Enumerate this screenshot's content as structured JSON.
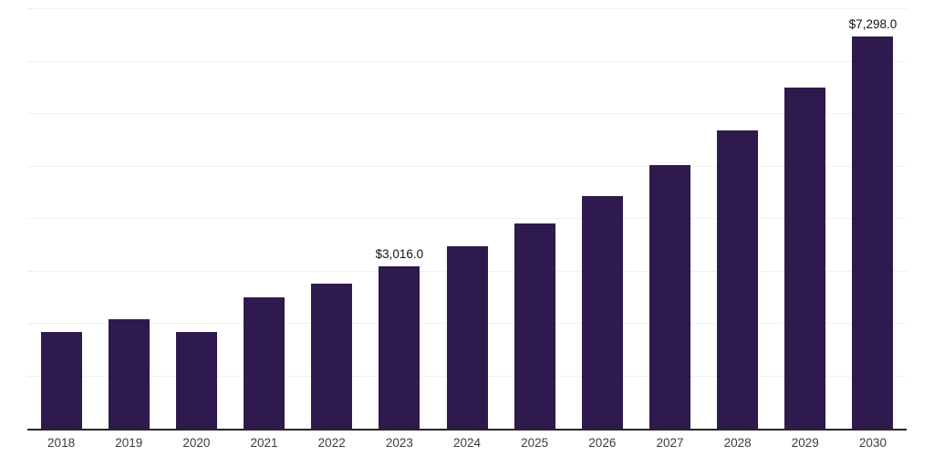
{
  "chart_data": {
    "type": "bar",
    "title": "",
    "xlabel": "",
    "ylabel": "",
    "categories": [
      "2018",
      "2019",
      "2020",
      "2021",
      "2022",
      "2023",
      "2024",
      "2025",
      "2026",
      "2027",
      "2028",
      "2029",
      "2030"
    ],
    "values": [
      1790,
      2030,
      1790,
      2450,
      2700,
      3016,
      3400,
      3820,
      4330,
      4900,
      5540,
      6340,
      7298
    ],
    "annotations": [
      {
        "category": "2023",
        "text": "$3,016.0"
      },
      {
        "category": "2030",
        "text": "$7,298.0"
      }
    ],
    "ylim": [
      0,
      7800
    ],
    "bar_color": "#2e1a4d",
    "grid": "horizontal-light",
    "gridline_color": "#f0f0f0",
    "axis_line_color": "#262626",
    "legend": "none"
  }
}
